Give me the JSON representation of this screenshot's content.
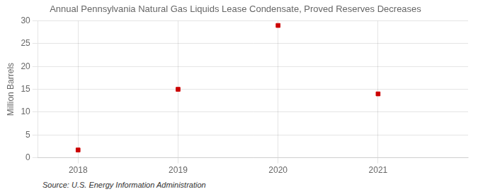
{
  "chart_data": {
    "type": "scatter",
    "title": "Annual Pennsylvania Natural Gas Liquids Lease Condensate, Proved Reserves Decreases",
    "ylabel": "Million Barrels",
    "x": [
      2018,
      2019,
      2020,
      2021
    ],
    "values": [
      1.7,
      15.0,
      29.0,
      14.0
    ],
    "color": "#cc0000",
    "marker": "square",
    "xlim": [
      2017.6,
      2021.9
    ],
    "xticks": [
      2018,
      2019,
      2020,
      2021
    ],
    "ylim": [
      0,
      30
    ],
    "yticks": [
      0,
      5,
      10,
      15,
      20,
      25,
      30
    ],
    "grid": true,
    "annotation": "Source: U.S. Energy Information Administration"
  }
}
